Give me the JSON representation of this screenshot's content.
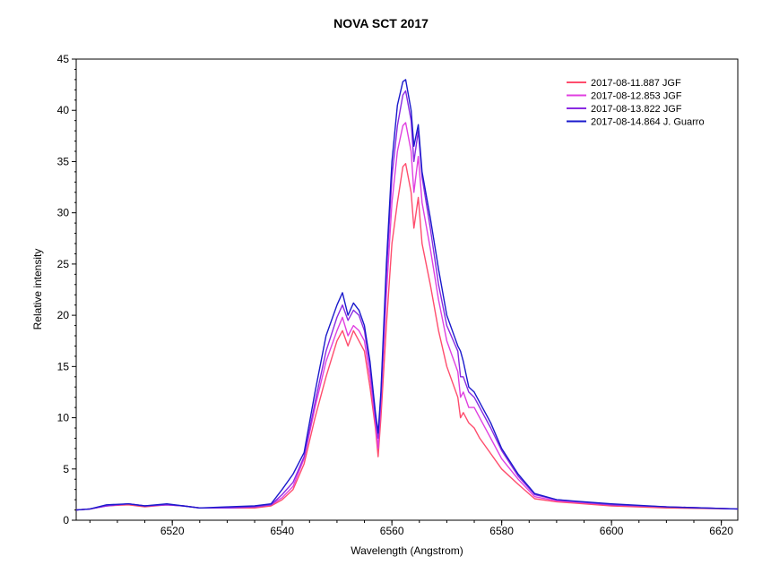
{
  "chart_data": {
    "type": "line",
    "title": "NOVA SCT 2017",
    "xlabel": "Wavelength (Angstrom)",
    "ylabel": "Relative intensity",
    "xlim": [
      6502.5,
      6623
    ],
    "ylim": [
      0,
      45
    ],
    "xticks": [
      6520,
      6540,
      6560,
      6580,
      6600,
      6620
    ],
    "yticks": [
      0,
      5,
      10,
      15,
      20,
      25,
      30,
      35,
      40,
      45
    ],
    "grid": false,
    "legend_position": "top-right",
    "series": [
      {
        "name": "2017-08-11.887  JGF",
        "color": "#ff4d6d",
        "x": [
          6502.5,
          6505,
          6508,
          6512,
          6515,
          6519,
          6522,
          6525,
          6530,
          6535,
          6538,
          6540,
          6542,
          6544,
          6546,
          6548,
          6550,
          6551,
          6552,
          6553,
          6554,
          6555,
          6556,
          6557,
          6557.5,
          6558,
          6559,
          6560,
          6561,
          6562,
          6562.5,
          6563.5,
          6564,
          6564.8,
          6565.5,
          6567,
          6568.5,
          6570,
          6572,
          6572.5,
          6573,
          6574,
          6575,
          6576,
          6578,
          6580,
          6583,
          6586,
          6590,
          6600,
          6610,
          6623
        ],
        "y": [
          1.0,
          1.1,
          1.4,
          1.5,
          1.3,
          1.5,
          1.4,
          1.2,
          1.2,
          1.2,
          1.4,
          2.0,
          3.0,
          5.5,
          10.0,
          14.0,
          17.5,
          18.5,
          17.0,
          18.5,
          17.5,
          16.5,
          13.0,
          9.0,
          6.2,
          10.0,
          19.0,
          27.0,
          31.0,
          34.5,
          34.8,
          32.0,
          28.5,
          31.5,
          27.0,
          23.0,
          18.5,
          15.0,
          12.0,
          10.0,
          10.5,
          9.5,
          9.0,
          8.0,
          6.5,
          5.0,
          3.5,
          2.1,
          1.8,
          1.4,
          1.2,
          1.1
        ]
      },
      {
        "name": "2017-08-12.853  JGF",
        "color": "#e040e0",
        "x": [
          6502.5,
          6505,
          6508,
          6512,
          6515,
          6519,
          6522,
          6525,
          6530,
          6535,
          6538,
          6540,
          6542,
          6544,
          6546,
          6548,
          6550,
          6551,
          6552,
          6553,
          6554,
          6555,
          6556,
          6557,
          6557.5,
          6558,
          6559,
          6560,
          6561,
          6562,
          6562.5,
          6563.5,
          6564,
          6564.8,
          6565.5,
          6567,
          6568.5,
          6570,
          6572,
          6572.5,
          6573,
          6574,
          6575,
          6576,
          6578,
          6580,
          6583,
          6586,
          6590,
          6600,
          6610,
          6623
        ],
        "y": [
          1.0,
          1.1,
          1.4,
          1.6,
          1.4,
          1.5,
          1.4,
          1.2,
          1.2,
          1.3,
          1.5,
          2.2,
          3.3,
          6.0,
          11.0,
          15.5,
          18.5,
          19.8,
          18.0,
          19.0,
          18.5,
          17.5,
          14.0,
          9.5,
          7.0,
          11.5,
          22.0,
          31.0,
          36.0,
          38.5,
          38.8,
          36.0,
          32.0,
          35.5,
          31.0,
          26.5,
          21.5,
          17.5,
          14.5,
          12.0,
          12.5,
          11.0,
          11.0,
          10.0,
          8.0,
          6.0,
          4.0,
          2.3,
          1.9,
          1.5,
          1.3,
          1.1
        ]
      },
      {
        "name": "2017-08-13.822  JGF",
        "color": "#8a2be2",
        "x": [
          6502.5,
          6505,
          6508,
          6512,
          6515,
          6519,
          6522,
          6525,
          6530,
          6535,
          6538,
          6540,
          6542,
          6544,
          6546,
          6548,
          6550,
          6551,
          6552,
          6553,
          6554,
          6555,
          6556,
          6557,
          6557.5,
          6558,
          6559,
          6560,
          6561,
          6562,
          6562.5,
          6563.5,
          6564,
          6564.8,
          6565.5,
          6567,
          6568.5,
          6570,
          6572,
          6572.5,
          6573,
          6574,
          6575,
          6576,
          6578,
          6580,
          6583,
          6586,
          6590,
          6600,
          6610,
          6623
        ],
        "y": [
          1.0,
          1.1,
          1.4,
          1.6,
          1.4,
          1.5,
          1.4,
          1.2,
          1.2,
          1.3,
          1.5,
          2.5,
          3.7,
          6.2,
          11.5,
          16.5,
          19.8,
          21.0,
          19.5,
          20.5,
          20.0,
          18.5,
          15.0,
          10.0,
          8.0,
          12.0,
          24.0,
          33.5,
          38.5,
          41.5,
          41.9,
          39.0,
          35.0,
          38.0,
          33.5,
          28.5,
          23.0,
          19.0,
          16.5,
          14.0,
          14.0,
          12.5,
          12.0,
          11.0,
          9.0,
          6.8,
          4.3,
          2.5,
          2.0,
          1.5,
          1.3,
          1.1
        ]
      },
      {
        "name": "2017-08-14.864  J. Guarro",
        "color": "#1a1acc",
        "x": [
          6502.5,
          6505,
          6508,
          6512,
          6515,
          6519,
          6522,
          6525,
          6530,
          6535,
          6538,
          6540,
          6542,
          6544,
          6546,
          6548,
          6550,
          6551,
          6552,
          6553,
          6554,
          6555,
          6556,
          6557,
          6557.5,
          6558,
          6559,
          6560,
          6561,
          6562,
          6562.5,
          6563.5,
          6564,
          6564.8,
          6565.5,
          6567,
          6568.5,
          6570,
          6572,
          6572.5,
          6573,
          6574,
          6575,
          6576,
          6578,
          6580,
          6583,
          6586,
          6590,
          6600,
          6610,
          6623
        ],
        "y": [
          1.0,
          1.1,
          1.5,
          1.6,
          1.4,
          1.6,
          1.4,
          1.2,
          1.3,
          1.4,
          1.6,
          3.0,
          4.5,
          6.6,
          12.5,
          18.0,
          21.0,
          22.2,
          20.0,
          21.2,
          20.5,
          19.0,
          15.5,
          10.5,
          8.5,
          12.5,
          25.0,
          35.0,
          40.5,
          42.8,
          43.0,
          40.0,
          36.5,
          38.6,
          34.0,
          29.5,
          24.5,
          20.0,
          17.0,
          16.5,
          15.5,
          13.0,
          12.5,
          11.5,
          9.5,
          7.0,
          4.5,
          2.6,
          2.0,
          1.6,
          1.3,
          1.1
        ]
      }
    ]
  }
}
